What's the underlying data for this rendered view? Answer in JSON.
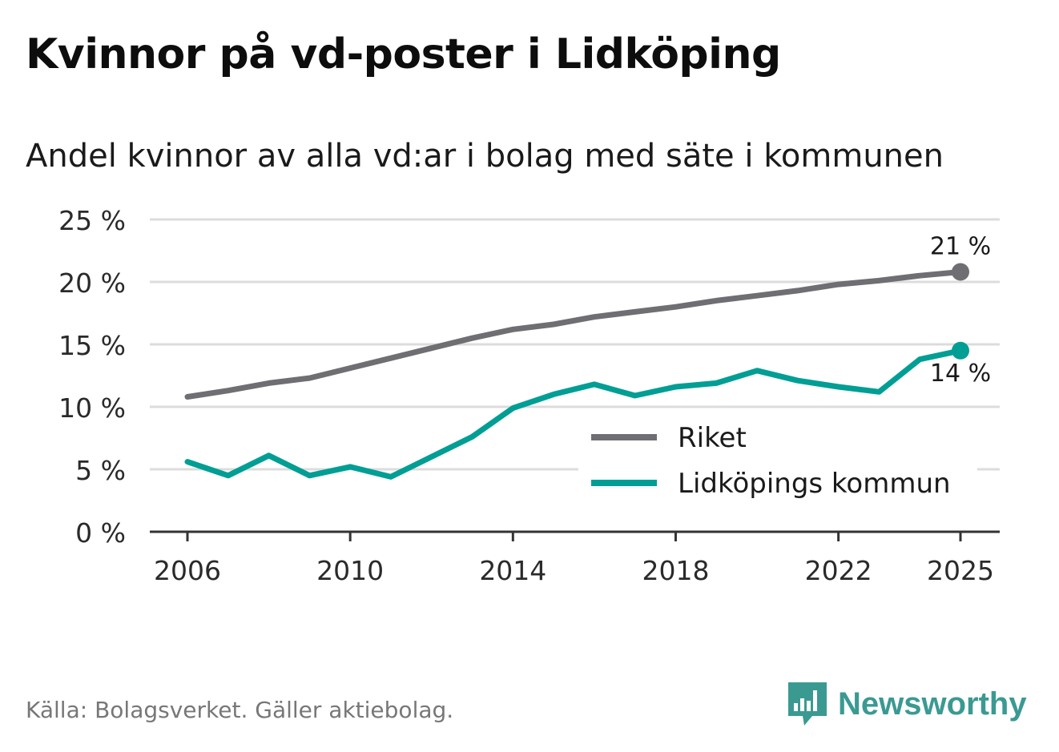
{
  "header": {
    "title": "Kvinnor på vd-poster i Lidköping",
    "subtitle": "Andel kvinnor av alla vd:ar i bolag med säte i kommunen"
  },
  "footer": {
    "source": "Källa: Bolagsverket. Gäller aktiebolag.",
    "brand": "Newsworthy",
    "brand_icon": "bar-chart-icon"
  },
  "colors": {
    "riket": "#6e6e73",
    "lidkoping": "#009e94",
    "grid": "#dcdcdc",
    "axis": "#333333",
    "brand": "#3a9a92"
  },
  "chart_data": {
    "type": "line",
    "title": "Kvinnor på vd-poster i Lidköping",
    "subtitle": "Andel kvinnor av alla vd:ar i bolag med säte i kommunen",
    "xlabel": "",
    "ylabel": "",
    "ylim": [
      0,
      25
    ],
    "xlim": [
      2006,
      2025
    ],
    "y_ticks": [
      0,
      5,
      10,
      15,
      20,
      25
    ],
    "y_tick_labels": [
      "0 %",
      "5 %",
      "10 %",
      "15 %",
      "20 %",
      "25 %"
    ],
    "x_ticks": [
      2006,
      2010,
      2014,
      2018,
      2022,
      2025
    ],
    "x_tick_labels": [
      "2006",
      "2010",
      "2014",
      "2018",
      "2022",
      "2025"
    ],
    "grid": true,
    "legend_position": "bottom-right",
    "x": [
      2006,
      2007,
      2008,
      2009,
      2010,
      2011,
      2012,
      2013,
      2014,
      2015,
      2016,
      2017,
      2018,
      2019,
      2020,
      2021,
      2022,
      2023,
      2024,
      2025
    ],
    "series": [
      {
        "name": "Riket",
        "color": "#6e6e73",
        "values": [
          10.8,
          11.3,
          11.9,
          12.3,
          13.1,
          13.9,
          14.7,
          15.5,
          16.2,
          16.6,
          17.2,
          17.6,
          18.0,
          18.5,
          18.9,
          19.3,
          19.8,
          20.1,
          20.5,
          20.8
        ],
        "end_label": "21 %"
      },
      {
        "name": "Lidköpings kommun",
        "color": "#009e94",
        "values": [
          5.6,
          4.5,
          6.1,
          4.5,
          5.2,
          4.4,
          6.0,
          7.6,
          9.9,
          11.0,
          11.8,
          10.9,
          11.6,
          11.9,
          12.9,
          12.1,
          11.6,
          11.2,
          13.8,
          14.5
        ],
        "end_label": "14 %"
      }
    ]
  }
}
